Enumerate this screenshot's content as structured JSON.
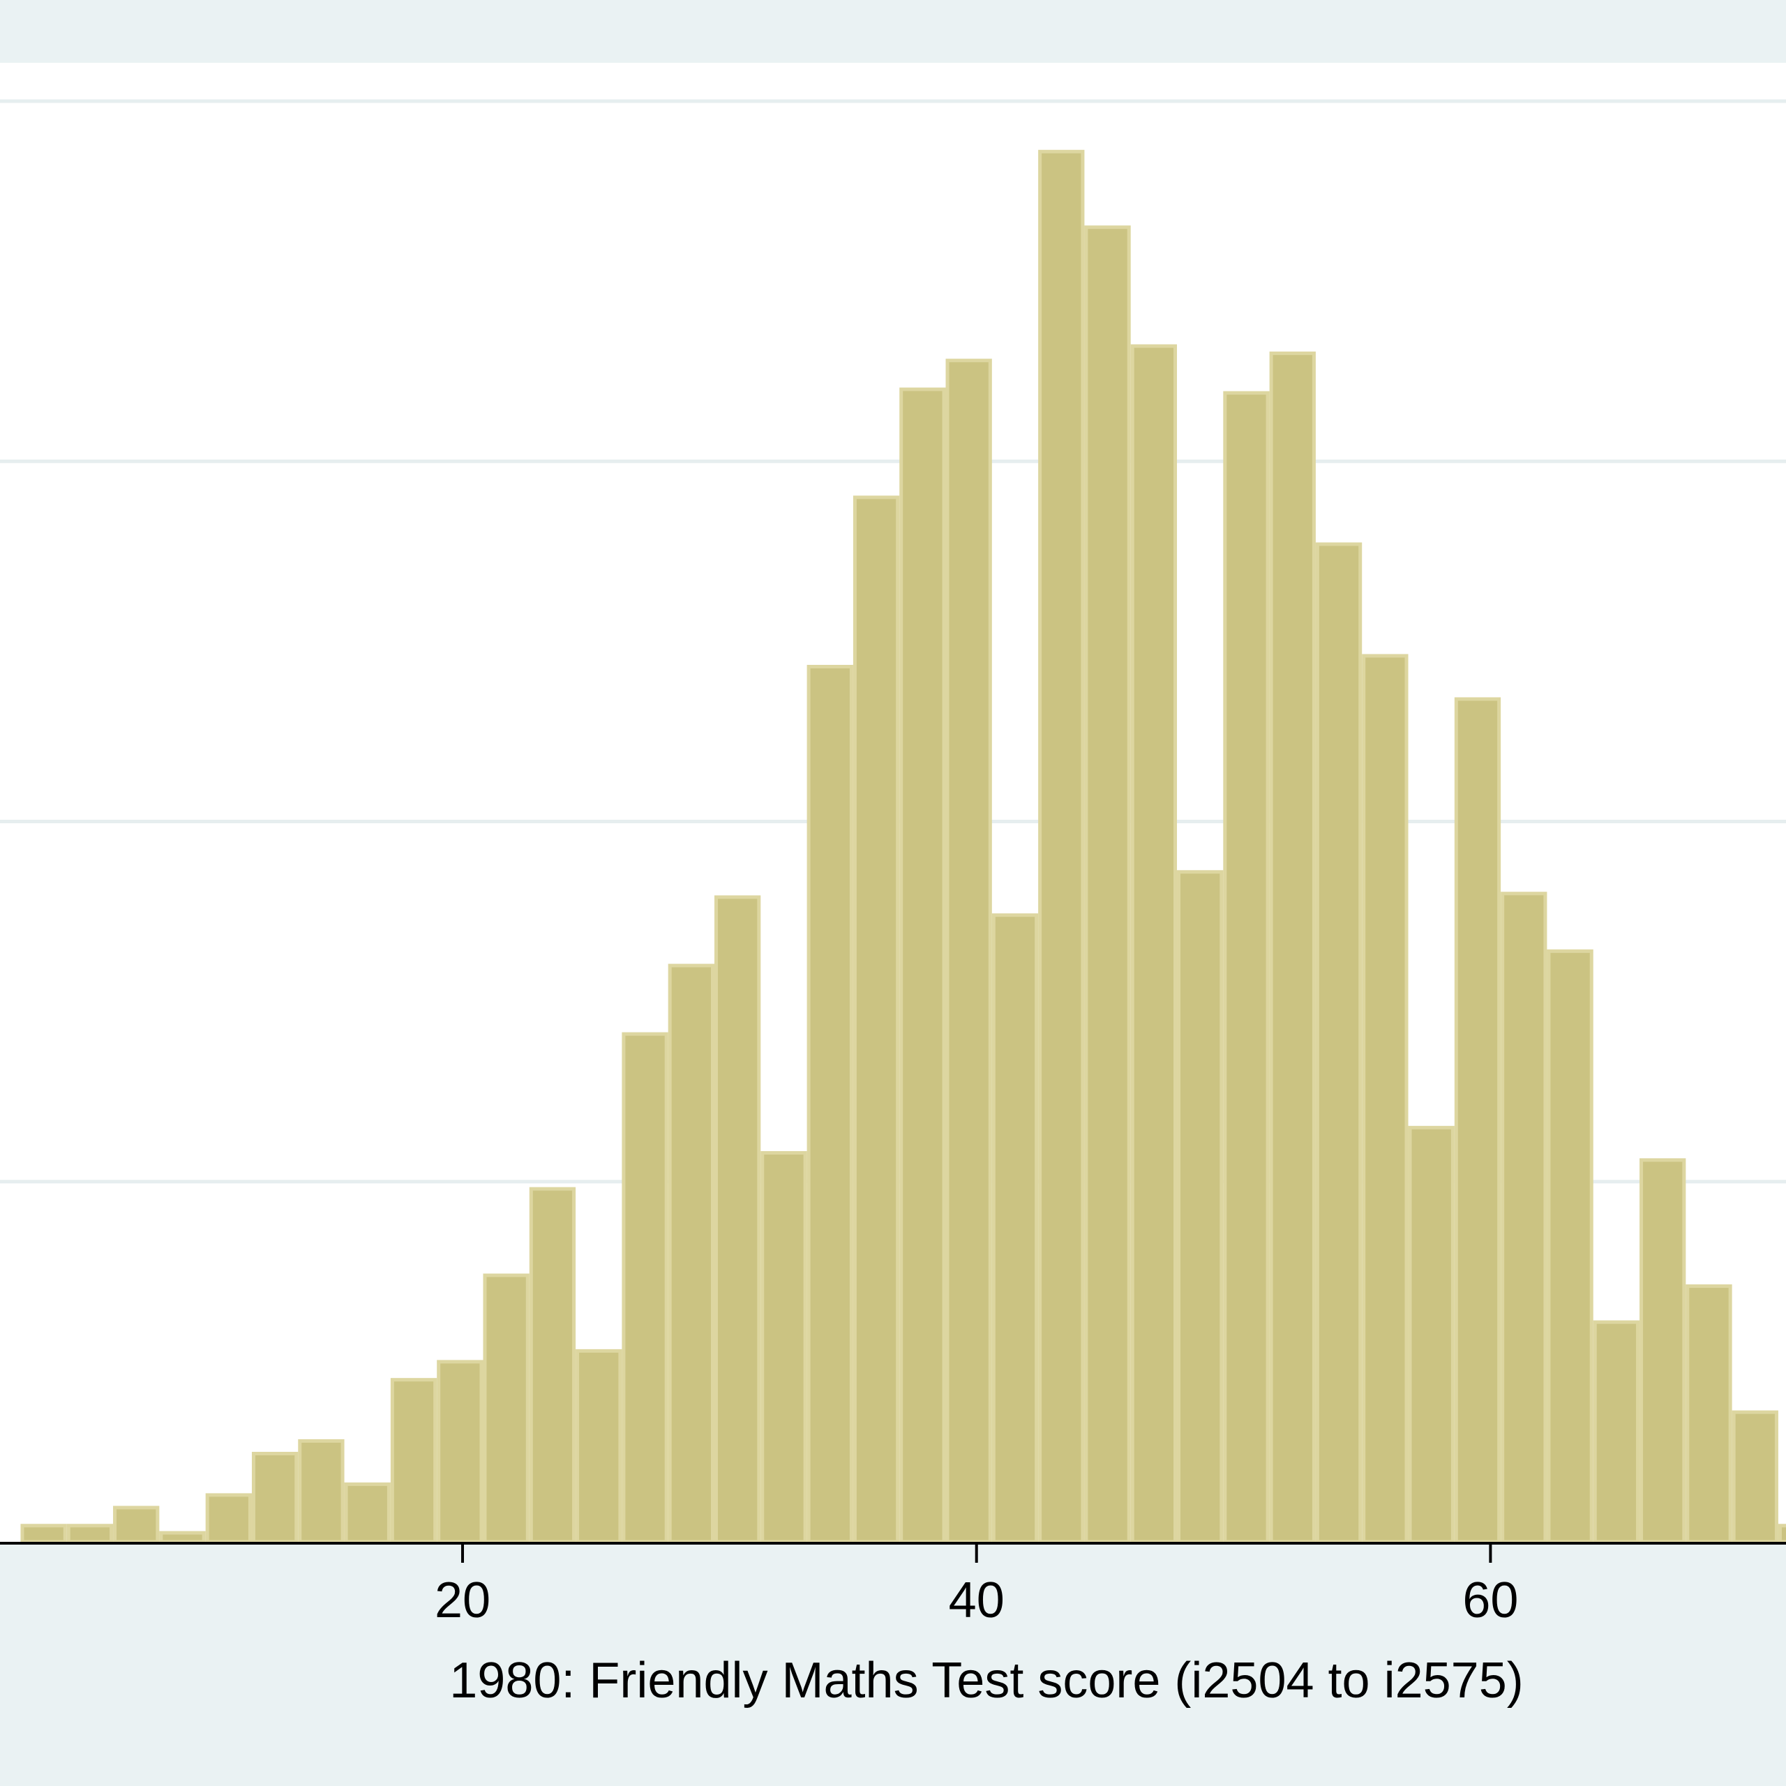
{
  "chart_data": {
    "type": "bar",
    "histogram": true,
    "xlabel": "1980: Friendly Maths Test score (i2504 to i2575)",
    "x_ticks": [
      20,
      40,
      60
    ],
    "xlim": [
      2,
      71.5
    ],
    "ylim": [
      0,
      0.04
    ],
    "y_gridlines": [
      0.01,
      0.02,
      0.03,
      0.04
    ],
    "grid": true,
    "bin_width": 1.8,
    "bins_start": 2.8,
    "values": [
      0.00045,
      0.00045,
      0.00095,
      0.00025,
      0.0013,
      0.00245,
      0.0028,
      0.0016,
      0.0045,
      0.005,
      0.0074,
      0.0098,
      0.0053,
      0.0141,
      0.016,
      0.0179,
      0.0108,
      0.0243,
      0.029,
      0.032,
      0.0328,
      0.0174,
      0.0386,
      0.0365,
      0.0332,
      0.0186,
      0.0319,
      0.033,
      0.0277,
      0.0246,
      0.0115,
      0.0234,
      0.018,
      0.0164,
      0.0061,
      0.0106,
      0.0071,
      0.0036,
      0.00045
    ],
    "colors": {
      "bar_fill": "#cbc382",
      "bar_edge": "#ddd6a0",
      "plot_background": "#ffffff",
      "outer_background": "#eaf2f3",
      "gridline": "#e6eeef",
      "axis": "#000000"
    }
  }
}
